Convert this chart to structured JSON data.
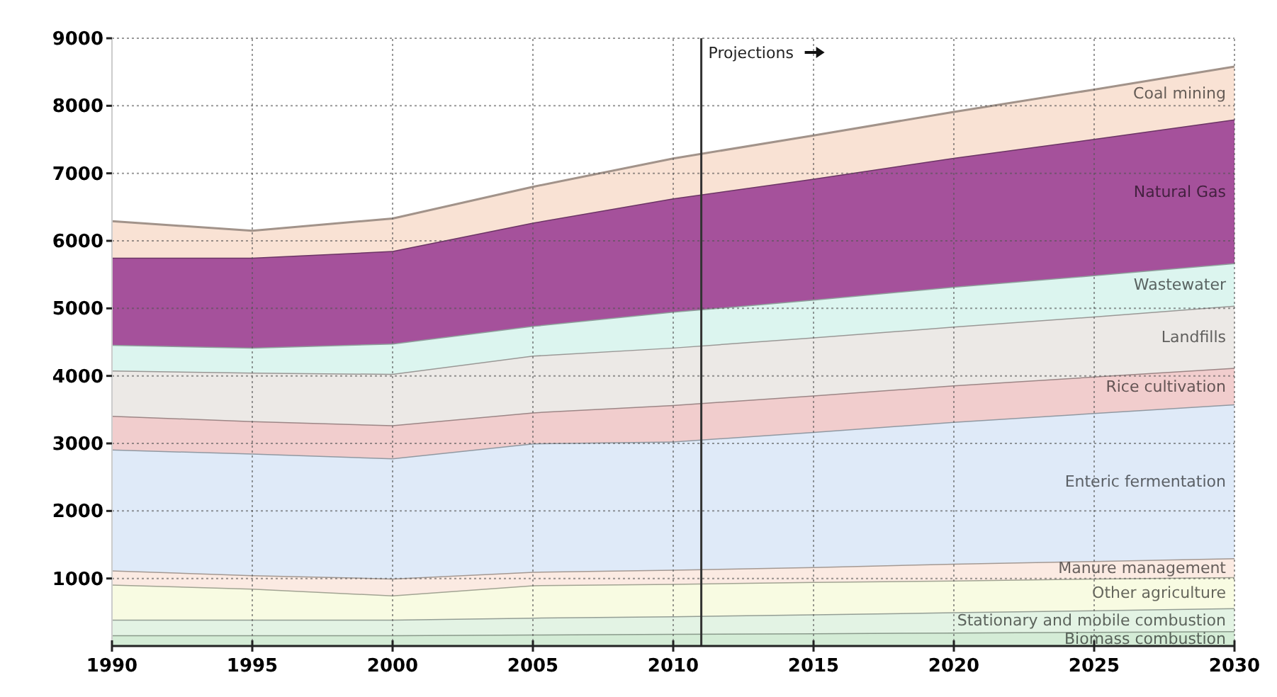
{
  "chart_data": {
    "type": "area",
    "stacked": true,
    "x": [
      1990,
      1995,
      2000,
      2005,
      2010,
      2015,
      2020,
      2025,
      2030
    ],
    "xlim": [
      1990,
      2030
    ],
    "xticks": [
      1990,
      1995,
      2000,
      2005,
      2010,
      2015,
      2020,
      2025,
      2030
    ],
    "ylim": [
      0,
      9000
    ],
    "yticks": [
      1000,
      2000,
      3000,
      4000,
      5000,
      6000,
      7000,
      8000,
      9000
    ],
    "grid": true,
    "series": [
      {
        "name": "Biomass combustion",
        "color": "#d4ecd6",
        "values": [
          160,
          160,
          160,
          170,
          180,
          190,
          200,
          210,
          220
        ]
      },
      {
        "name": "Stationary and mobile combustion",
        "color": "#e3f3e4",
        "values": [
          230,
          230,
          230,
          250,
          260,
          280,
          300,
          320,
          340
        ]
      },
      {
        "name": "Other agriculture",
        "color": "#f8fbe2",
        "values": [
          520,
          460,
          360,
          480,
          480,
          480,
          470,
          470,
          460
        ]
      },
      {
        "name": "Manure management",
        "color": "#fbeae2",
        "values": [
          210,
          200,
          250,
          200,
          210,
          220,
          250,
          260,
          280
        ]
      },
      {
        "name": "Enteric fermentation",
        "color": "#dfeaf8",
        "values": [
          1790,
          1800,
          1780,
          1900,
          1900,
          2000,
          2100,
          2190,
          2280
        ]
      },
      {
        "name": "Rice cultivation",
        "color": "#f1cdcd",
        "values": [
          500,
          480,
          490,
          460,
          540,
          540,
          540,
          540,
          540
        ]
      },
      {
        "name": "Landfills",
        "color": "#ece9e6",
        "values": [
          670,
          720,
          760,
          840,
          850,
          860,
          870,
          890,
          920
        ]
      },
      {
        "name": "Wastewater",
        "color": "#dcf5ef",
        "values": [
          380,
          370,
          450,
          440,
          530,
          560,
          590,
          610,
          630
        ]
      },
      {
        "name": "Natural Gas",
        "color": "#a5519b",
        "values": [
          1290,
          1330,
          1370,
          1530,
          1680,
          1790,
          1910,
          2020,
          2130
        ]
      },
      {
        "name": "Coal mining",
        "color": "#f9e2d4",
        "values": [
          540,
          400,
          480,
          530,
          590,
          640,
          680,
          730,
          780
        ]
      }
    ],
    "ref_lines": [
      {
        "axis": "x",
        "value": 2011,
        "label": "Projections",
        "color": "#333333"
      }
    ]
  }
}
